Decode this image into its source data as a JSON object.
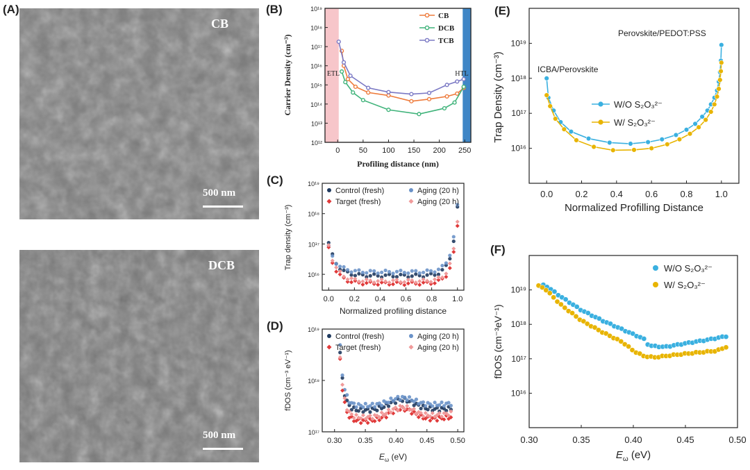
{
  "panels": {
    "A": {
      "label": "(A)",
      "images": [
        {
          "tag": "CB",
          "scalebar": "500 nm"
        },
        {
          "tag": "DCB",
          "scalebar": "500 nm"
        }
      ]
    },
    "B": {
      "label": "(B)",
      "ylabel": "Carrier Density (cm⁻³)",
      "xlabel": "Profiling distance (nm)",
      "region_left": "ETL",
      "region_right": "HTL",
      "colors": {
        "CB": "#ee7a3a",
        "DCB": "#3fb37a",
        "TCB": "#7a78c4",
        "etl_band": "#f4b3b8",
        "htl_band": "#3f86c6"
      }
    },
    "C": {
      "label": "(C)",
      "ylabel": "Trap density (cm⁻³)",
      "xlabel": "Normalized profiling distance",
      "colors": {
        "control_fresh": "#1f3a5f",
        "control_aging": "#6a92c8",
        "target_fresh": "#e03a3a",
        "target_aging": "#f09a9a"
      }
    },
    "D": {
      "label": "(D)",
      "ylabel": "fDOS (cm⁻³ eV⁻¹)",
      "xlabel": "Eω (eV)"
    },
    "E": {
      "label": "(E)",
      "ylabel": "Trap  Density (cm⁻³)",
      "xlabel": "Normalized Profilling Distance",
      "annot_left": "ICBA/Perovskite",
      "annot_right": "Perovskite/PEDOT:PSS",
      "colors": {
        "wo": "#3ab0e0",
        "w": "#e8b400"
      }
    },
    "F": {
      "label": "(F)",
      "ylabel": "fDOS (cm⁻³eV⁻¹)",
      "xlabel": "Eω (eV)"
    }
  },
  "chart_data": [
    {
      "panel": "B",
      "type": "line",
      "xlabel": "Profiling distance (nm)",
      "ylabel": "Carrier Density (cm⁻³)",
      "xlim": [
        -25,
        262
      ],
      "ylim": [
        1000000000000.0,
        1e+19
      ],
      "yscale": "log",
      "xticks": [
        0,
        50,
        100,
        150,
        200,
        250
      ],
      "yticks": [
        "10¹²",
        "10¹³",
        "10¹⁴",
        "10¹⁵",
        "10¹⁶",
        "10¹⁷",
        "10¹⁸",
        "10¹⁹"
      ],
      "legend_position": "top-right",
      "series": [
        {
          "name": "CB",
          "color": "#ee7a3a",
          "x": [
            8,
            12,
            20,
            35,
            60,
            100,
            145,
            180,
            215,
            235,
            248
          ],
          "y": [
            6e+16,
            1e+16,
            2000000000000000.0,
            800000000000000.0,
            400000000000000.0,
            280000000000000.0,
            140000000000000.0,
            180000000000000.0,
            250000000000000.0,
            350000000000000.0,
            700000000000000.0
          ]
        },
        {
          "name": "DCB",
          "color": "#3fb37a",
          "x": [
            8,
            15,
            30,
            50,
            100,
            160,
            210,
            230,
            248
          ],
          "y": [
            5000000000000000.0,
            1400000000000000.0,
            400000000000000.0,
            160000000000000.0,
            50000000000000.0,
            30000000000000.0,
            60000000000000.0,
            120000000000000.0,
            800000000000000.0
          ]
        },
        {
          "name": "TCB",
          "color": "#7a78c4",
          "x": [
            2,
            12,
            25,
            60,
            100,
            145,
            180,
            215,
            235,
            248
          ],
          "y": [
            1.8e+17,
            1.5e+16,
            3000000000000000.0,
            700000000000000.0,
            420000000000000.0,
            330000000000000.0,
            380000000000000.0,
            1000000000000000.0,
            1500000000000000.0,
            2000000000000000.0
          ]
        }
      ]
    },
    {
      "panel": "C",
      "type": "scatter",
      "xlabel": "Normalized profiling distance",
      "ylabel": "Trap density (cm⁻³)",
      "xlim": [
        -0.05,
        1.05
      ],
      "ylim": [
        3000000000000000.0,
        1e+19
      ],
      "yscale": "log",
      "xticks": [
        0.0,
        0.2,
        0.4,
        0.6,
        0.8,
        1.0
      ],
      "yticks": [
        "10¹⁶",
        "10¹⁷",
        "10¹⁸",
        "10¹⁹"
      ],
      "legend_position": "top",
      "series": [
        {
          "name": "Control (fresh)",
          "marker": "circle",
          "color": "#1f3a5f",
          "base": 9000000000000000.0,
          "left": 1.1e+17,
          "right": 1.5e+18
        },
        {
          "name": "Aging (20 h)",
          "marker": "circle",
          "color": "#6a92c8",
          "base": 1.2e+16,
          "left": 8e+16,
          "right": 1.8e+18
        },
        {
          "name": "Target (fresh)",
          "marker": "diamond",
          "color": "#e03a3a",
          "base": 5000000000000000.0,
          "left": 7e+16,
          "right": 4e+17
        },
        {
          "name": "Aging (20 h)",
          "marker": "diamond",
          "color": "#f09a9a",
          "base": 6000000000000000.0,
          "left": 9e+16,
          "right": 6e+17
        }
      ]
    },
    {
      "panel": "D",
      "type": "scatter",
      "xlabel": "Eω (eV)",
      "ylabel": "fDOS (cm⁻³ eV⁻¹)",
      "xlim": [
        0.28,
        0.51
      ],
      "ylim": [
        1e+17,
        1e+19
      ],
      "yscale": "log",
      "xticks": [
        0.3,
        0.35,
        0.4,
        0.45,
        0.5
      ],
      "xticklabels": [
        "0.30",
        "0.35",
        "0.40",
        "0.45",
        "0.50"
      ],
      "yticks": [
        "10¹⁷",
        "10¹⁸",
        "10¹⁹"
      ],
      "legend_position": "top",
      "series": [
        {
          "name": "Control (fresh)",
          "marker": "circle",
          "color": "#1f3a5f",
          "start": 3.5e+18,
          "floor": 2.6e+17,
          "hump": 4.2e+17,
          "end": 3e+17
        },
        {
          "name": "Aging (20 h)",
          "marker": "circle",
          "color": "#6a92c8",
          "start": 4.5e+18,
          "floor": 3.2e+17,
          "hump": 4.6e+17,
          "end": 3.8e+17
        },
        {
          "name": "Target (fresh)",
          "marker": "diamond",
          "color": "#e03a3a",
          "start": 2.5e+18,
          "floor": 1.6e+17,
          "hump": 2.8e+17,
          "end": 2.2e+17
        },
        {
          "name": "Aging (20 h)",
          "marker": "diamond",
          "color": "#f09a9a",
          "start": 3e+18,
          "floor": 1.9e+17,
          "hump": 3e+17,
          "end": 2.6e+17
        }
      ]
    },
    {
      "panel": "E",
      "type": "line",
      "xlabel": "Normalized Profilling Distance",
      "ylabel": "Trap  Density (cm⁻³)",
      "xlim": [
        -0.1,
        1.1
      ],
      "ylim": [
        1000000000000000.0,
        1e+20
      ],
      "yscale": "log",
      "xticks": [
        0.0,
        0.2,
        0.4,
        0.6,
        0.8,
        1.0
      ],
      "xticklabels": [
        "0.0",
        "0.2",
        "0.4",
        "0.6",
        "0.8",
        "1.0"
      ],
      "yticks": [
        "10¹⁶",
        "10¹⁷",
        "10¹⁸",
        "10¹⁹"
      ],
      "legend_position": "center",
      "series": [
        {
          "name": "W/O S₂O₃²⁻",
          "color": "#3ab0e0",
          "x": [
            0.0,
            0.01,
            0.04,
            0.08,
            0.14,
            0.24,
            0.36,
            0.48,
            0.58,
            0.66,
            0.74,
            0.8,
            0.85,
            0.89,
            0.92,
            0.94,
            0.96,
            0.975,
            0.985,
            0.992,
            0.997,
            1.0
          ],
          "y": [
            1e+18,
            2.8e+17,
            1.2e+17,
            5.6e+16,
            3e+16,
            1.9e+16,
            1.45e+16,
            1.35e+16,
            1.5e+16,
            1.8e+16,
            2.4e+16,
            3.4e+16,
            5e+16,
            8e+16,
            1.2e+17,
            1.8e+17,
            2.8e+17,
            4.5e+17,
            8e+17,
            1.5e+18,
            3.2e+18,
            9e+18
          ]
        },
        {
          "name": "W/ S₂O₃²⁻",
          "color": "#e8b400",
          "x": [
            0.0,
            0.02,
            0.05,
            0.1,
            0.17,
            0.27,
            0.38,
            0.5,
            0.6,
            0.69,
            0.76,
            0.82,
            0.87,
            0.91,
            0.94,
            0.96,
            0.975,
            0.985,
            0.992,
            0.997,
            1.0
          ],
          "y": [
            3.3e+17,
            1.6e+17,
            7e+16,
            3.5e+16,
            1.7e+16,
            1.1e+16,
            8800000000000000.0,
            9000000000000000.0,
            1e+16,
            1.3e+16,
            1.8e+16,
            2.6e+16,
            4e+16,
            6.5e+16,
            1.1e+17,
            1.8e+17,
            3e+17,
            5e+17,
            9e+17,
            1.6e+18,
            2.8e+18
          ]
        }
      ]
    },
    {
      "panel": "F",
      "type": "scatter",
      "xlabel": "Eω (eV)",
      "ylabel": "fDOS (cm⁻³eV⁻¹)",
      "xlim": [
        0.3,
        0.5
      ],
      "ylim": [
        1000000000000000.0,
        1e+20
      ],
      "yscale": "log",
      "xticks": [
        0.3,
        0.35,
        0.4,
        0.45,
        0.5
      ],
      "xticklabels": [
        "0.30",
        "0.35",
        "0.40",
        "0.45",
        "0.50"
      ],
      "yticks": [
        "10¹⁶",
        "10¹⁷",
        "10¹⁸",
        "10¹⁹"
      ],
      "legend_position": "top-right",
      "series": [
        {
          "name": "W/O S₂O₃²⁻",
          "color": "#3ab0e0",
          "x": [
            0.31,
            0.315,
            0.33,
            0.35,
            0.37,
            0.39,
            0.41,
            0.415,
            0.43,
            0.45,
            0.47,
            0.489
          ],
          "y": [
            1.3e+19,
            1.4e+19,
            6.5e+18,
            2.6e+18,
            1.3e+18,
            7e+17,
            3.8e+17,
            2.4e+17,
            2.2e+17,
            2.8e+17,
            3.5e+17,
            4.5e+17
          ]
        },
        {
          "name": "W/ S₂O₃²⁻",
          "color": "#e8b400",
          "x": [
            0.309,
            0.315,
            0.33,
            0.35,
            0.37,
            0.39,
            0.4,
            0.41,
            0.42,
            0.44,
            0.46,
            0.48,
            0.489
          ],
          "y": [
            1.3e+19,
            1.1e+19,
            3.8e+18,
            1.3e+18,
            6e+17,
            3e+17,
            1.7e+17,
            1.2e+17,
            1.1e+17,
            1.3e+17,
            1.5e+17,
            1.7e+17,
            2.2e+17
          ]
        }
      ]
    }
  ]
}
